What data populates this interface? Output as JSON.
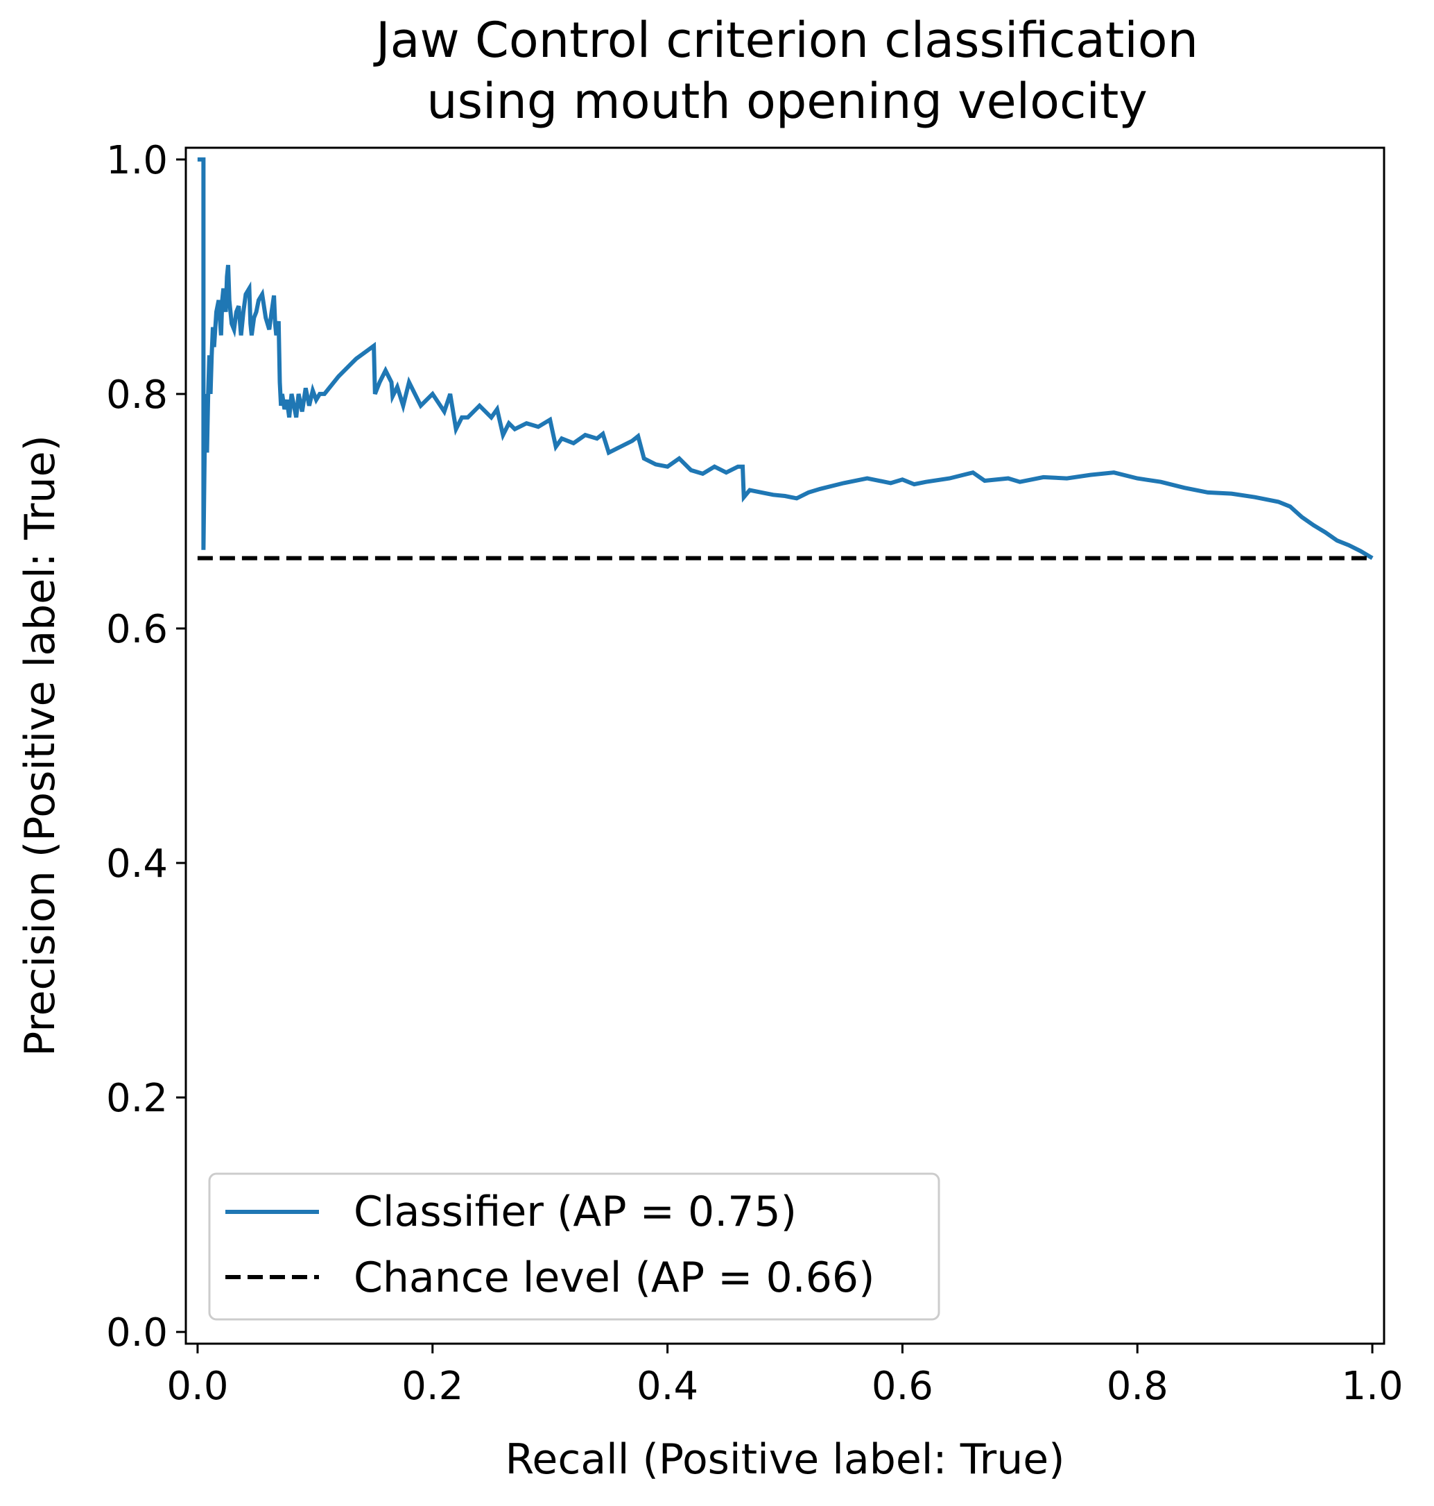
{
  "chart_data": {
    "type": "line",
    "title": [
      "Jaw Control criterion classification",
      "using mouth opening velocity"
    ],
    "xlabel": "Recall (Positive label: True)",
    "ylabel": "Precision (Positive label: True)",
    "xlim": [
      -0.01,
      1.01
    ],
    "ylim": [
      -0.01,
      1.01
    ],
    "xticks": [
      0.0,
      0.2,
      0.4,
      0.6,
      0.8,
      1.0
    ],
    "xtick_labels": [
      "0.0",
      "0.2",
      "0.4",
      "0.6",
      "0.8",
      "1.0"
    ],
    "yticks": [
      0.0,
      0.2,
      0.4,
      0.6,
      0.8,
      1.0
    ],
    "ytick_labels": [
      "0.0",
      "0.2",
      "0.4",
      "0.6",
      "0.8",
      "1.0"
    ],
    "grid": false,
    "legend_position": "lower-left",
    "series": [
      {
        "name": "Classifier (AP = 0.75)",
        "color": "#1f77b4",
        "style": "solid",
        "x": [
          0.0,
          0.005,
          0.005,
          0.006,
          0.007,
          0.008,
          0.009,
          0.01,
          0.011,
          0.012,
          0.013,
          0.014,
          0.016,
          0.018,
          0.02,
          0.021,
          0.022,
          0.024,
          0.025,
          0.026,
          0.027,
          0.029,
          0.031,
          0.033,
          0.035,
          0.037,
          0.039,
          0.041,
          0.044,
          0.045,
          0.046,
          0.048,
          0.05,
          0.052,
          0.055,
          0.058,
          0.061,
          0.063,
          0.065,
          0.066,
          0.067,
          0.069,
          0.07,
          0.071,
          0.072,
          0.074,
          0.076,
          0.078,
          0.08,
          0.082,
          0.084,
          0.086,
          0.089,
          0.092,
          0.095,
          0.098,
          0.101,
          0.104,
          0.108,
          0.12,
          0.135,
          0.15,
          0.151,
          0.155,
          0.16,
          0.165,
          0.166,
          0.17,
          0.175,
          0.18,
          0.19,
          0.2,
          0.21,
          0.215,
          0.22,
          0.225,
          0.23,
          0.24,
          0.25,
          0.255,
          0.26,
          0.265,
          0.27,
          0.28,
          0.29,
          0.3,
          0.305,
          0.31,
          0.32,
          0.33,
          0.34,
          0.345,
          0.35,
          0.36,
          0.37,
          0.375,
          0.38,
          0.39,
          0.4,
          0.41,
          0.42,
          0.43,
          0.44,
          0.45,
          0.46,
          0.464,
          0.465,
          0.47,
          0.48,
          0.49,
          0.5,
          0.51,
          0.52,
          0.53,
          0.55,
          0.57,
          0.59,
          0.6,
          0.61,
          0.62,
          0.64,
          0.66,
          0.67,
          0.69,
          0.7,
          0.72,
          0.74,
          0.76,
          0.78,
          0.8,
          0.82,
          0.84,
          0.86,
          0.88,
          0.9,
          0.92,
          0.93,
          0.94,
          0.95,
          0.96,
          0.97,
          0.98,
          0.99,
          1.0
        ],
        "y": [
          1.0,
          1.0,
          0.667,
          0.75,
          0.8,
          0.75,
          0.8,
          0.833,
          0.8,
          0.833,
          0.857,
          0.84,
          0.87,
          0.88,
          0.85,
          0.88,
          0.89,
          0.87,
          0.9,
          0.91,
          0.88,
          0.86,
          0.855,
          0.87,
          0.875,
          0.85,
          0.87,
          0.885,
          0.89,
          0.86,
          0.85,
          0.865,
          0.87,
          0.88,
          0.885,
          0.865,
          0.855,
          0.87,
          0.884,
          0.86,
          0.85,
          0.862,
          0.81,
          0.79,
          0.8,
          0.787,
          0.795,
          0.78,
          0.8,
          0.79,
          0.78,
          0.8,
          0.785,
          0.805,
          0.79,
          0.803,
          0.795,
          0.8,
          0.8,
          0.815,
          0.83,
          0.841,
          0.8,
          0.81,
          0.82,
          0.81,
          0.798,
          0.806,
          0.79,
          0.81,
          0.79,
          0.8,
          0.785,
          0.8,
          0.77,
          0.78,
          0.78,
          0.79,
          0.78,
          0.787,
          0.765,
          0.775,
          0.77,
          0.775,
          0.772,
          0.778,
          0.755,
          0.762,
          0.758,
          0.765,
          0.762,
          0.766,
          0.75,
          0.755,
          0.76,
          0.764,
          0.745,
          0.74,
          0.738,
          0.745,
          0.735,
          0.732,
          0.738,
          0.733,
          0.738,
          0.738,
          0.712,
          0.718,
          0.716,
          0.714,
          0.713,
          0.711,
          0.716,
          0.719,
          0.724,
          0.728,
          0.724,
          0.727,
          0.723,
          0.725,
          0.728,
          0.733,
          0.726,
          0.728,
          0.725,
          0.729,
          0.728,
          0.731,
          0.733,
          0.728,
          0.725,
          0.72,
          0.716,
          0.715,
          0.712,
          0.708,
          0.704,
          0.695,
          0.688,
          0.682,
          0.675,
          0.671,
          0.666,
          0.66
        ]
      },
      {
        "name": "Chance level (AP = 0.66)",
        "color": "#000000",
        "style": "dashed",
        "x": [
          0.0,
          1.0
        ],
        "y": [
          0.66,
          0.66
        ]
      }
    ]
  }
}
